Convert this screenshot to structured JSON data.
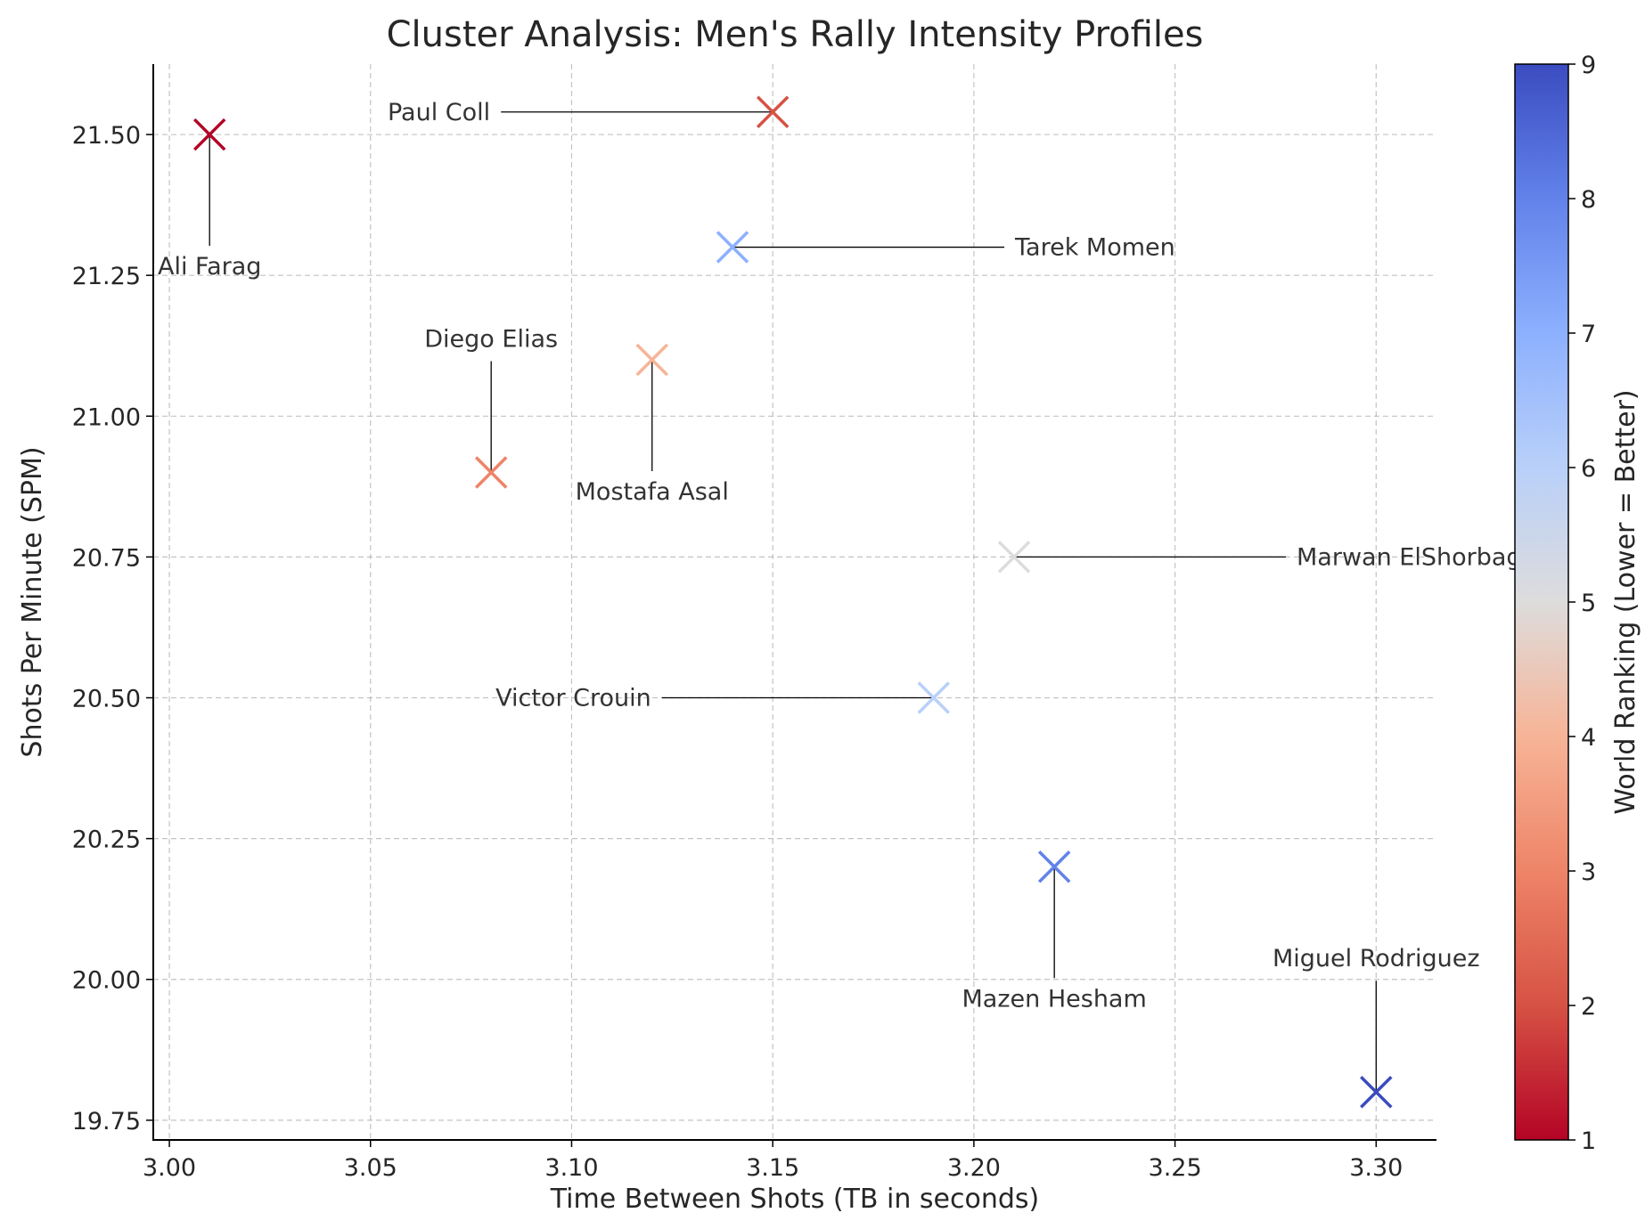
{
  "chart_data": {
    "type": "scatter",
    "title": "Cluster Analysis: Men's Rally Intensity Profiles",
    "xlabel": "Time Between Shots (TB in seconds)",
    "ylabel": "Shots Per Minute (SPM)",
    "xlim": [
      2.996,
      3.315
    ],
    "ylim": [
      19.715,
      21.625
    ],
    "xticks": [
      "3.00",
      "3.05",
      "3.10",
      "3.15",
      "3.20",
      "3.25",
      "3.30"
    ],
    "yticks": [
      "19.75",
      "20.00",
      "20.25",
      "20.50",
      "20.75",
      "21.00",
      "21.25",
      "21.50"
    ],
    "grid": true,
    "marker": "x",
    "colormap": "coolwarm_r",
    "colorbar": {
      "label": "World Ranking (Lower = Better)",
      "range": [
        1,
        9
      ],
      "ticks": [
        "1",
        "2",
        "3",
        "4",
        "5",
        "6",
        "7",
        "8",
        "9"
      ]
    },
    "points": [
      {
        "name": "Ali Farag",
        "tb": 3.01,
        "spm": 21.5,
        "ranking": 1,
        "label_pos": "below"
      },
      {
        "name": "Paul Coll",
        "tb": 3.15,
        "spm": 21.54,
        "ranking": 2,
        "label_pos": "left"
      },
      {
        "name": "Diego Elias",
        "tb": 3.08,
        "spm": 20.9,
        "ranking": 3,
        "label_pos": "above"
      },
      {
        "name": "Mostafa Asal",
        "tb": 3.12,
        "spm": 21.1,
        "ranking": 4,
        "label_pos": "below"
      },
      {
        "name": "Marwan ElShorbagy",
        "tb": 3.21,
        "spm": 20.75,
        "ranking": 5,
        "label_pos": "right"
      },
      {
        "name": "Victor Crouin",
        "tb": 3.19,
        "spm": 20.5,
        "ranking": 6,
        "label_pos": "left"
      },
      {
        "name": "Tarek Momen",
        "tb": 3.14,
        "spm": 21.3,
        "ranking": 7,
        "label_pos": "right"
      },
      {
        "name": "Mazen Hesham",
        "tb": 3.22,
        "spm": 20.2,
        "ranking": 8,
        "label_pos": "below"
      },
      {
        "name": "Miguel Rodriguez",
        "tb": 3.3,
        "spm": 19.8,
        "ranking": 9,
        "label_pos": "above"
      }
    ]
  }
}
